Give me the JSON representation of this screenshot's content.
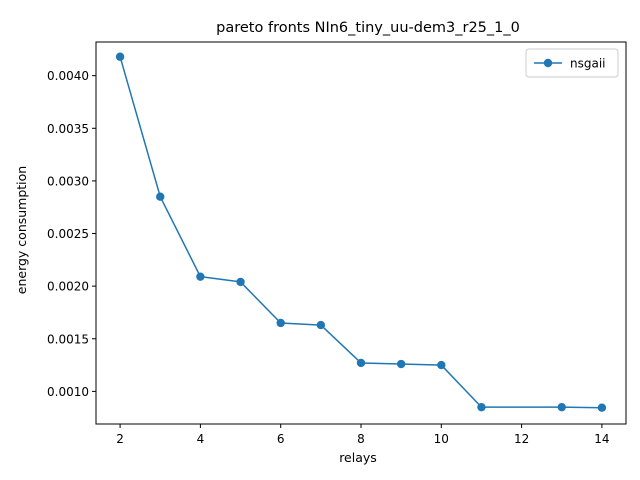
{
  "chart_data": {
    "type": "line",
    "title": "pareto fronts NIn6_tiny_uu-dem3_r25_1_0",
    "xlabel": "relays",
    "ylabel": "energy consumption",
    "xlim": [
      1.4,
      14.6
    ],
    "ylim": [
      0.00069,
      0.00432
    ],
    "x_ticks": [
      2,
      4,
      6,
      8,
      10,
      12,
      14
    ],
    "x_tick_labels": [
      "2",
      "4",
      "6",
      "8",
      "10",
      "12",
      "14"
    ],
    "y_ticks": [
      0.001,
      0.0015,
      0.002,
      0.0025,
      0.003,
      0.0035,
      0.004
    ],
    "y_tick_labels": [
      "0.0010",
      "0.0015",
      "0.0020",
      "0.0025",
      "0.0030",
      "0.0035",
      "0.0040"
    ],
    "grid": false,
    "legend_position": "top-right",
    "series": [
      {
        "name": "nsgaii",
        "color": "#1f77b4",
        "marker": "circle",
        "x": [
          2,
          3,
          4,
          5,
          6,
          7,
          8,
          9,
          10,
          11,
          13,
          14
        ],
        "y": [
          0.00418,
          0.00285,
          0.00209,
          0.00204,
          0.00165,
          0.00163,
          0.00127,
          0.00126,
          0.00125,
          0.00085,
          0.00085,
          0.000845
        ]
      }
    ]
  }
}
